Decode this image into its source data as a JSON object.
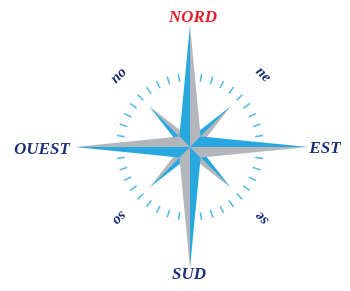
{
  "labels": {
    "north": "NORD",
    "south": "SUD",
    "east": "EST",
    "west": "OUEST",
    "northeast": "ne",
    "northwest": "no",
    "southeast": "se",
    "southwest": "so"
  }
}
